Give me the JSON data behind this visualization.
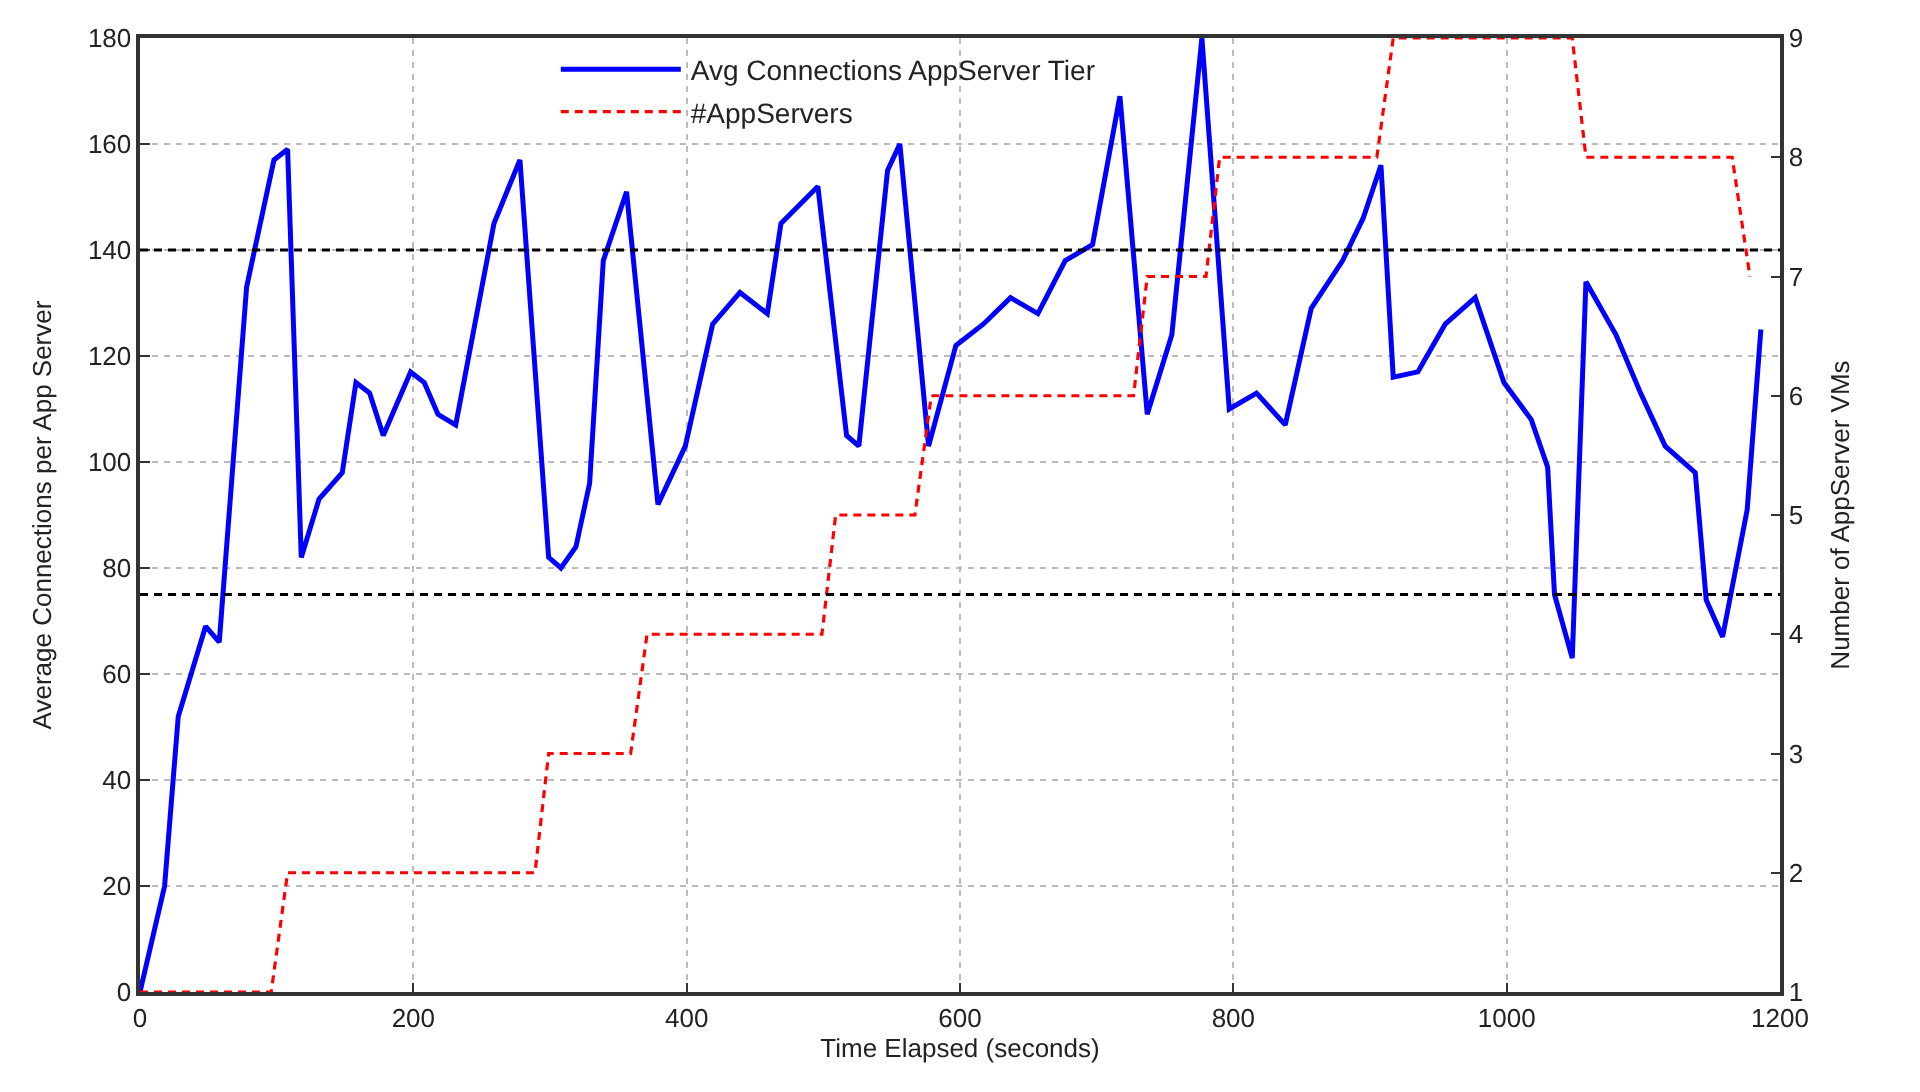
{
  "chart_data": {
    "type": "line",
    "xlabel": "Time Elapsed (seconds)",
    "ylabel": "Average Connections per App Server",
    "y2label": "Number of AppServer VMs",
    "xlim": [
      0,
      1200
    ],
    "xticks": [
      0,
      200,
      400,
      600,
      800,
      1000,
      1200
    ],
    "ylim": [
      0,
      180
    ],
    "yticks": [
      0,
      20,
      40,
      60,
      80,
      100,
      120,
      140,
      160,
      180
    ],
    "y2lim": [
      1,
      9
    ],
    "y2ticks": [
      1,
      2,
      3,
      4,
      5,
      6,
      7,
      8,
      9
    ],
    "grid": true,
    "legend": "top",
    "marker": "none",
    "ref_lines": [
      {
        "axis": "y",
        "value": 140,
        "color": "#000000",
        "line_style": "dashed"
      },
      {
        "axis": "y",
        "value": 75,
        "color": "#000000",
        "line_style": "dashed"
      }
    ],
    "series": [
      {
        "name": "Avg Connections AppServer Tier",
        "color": "#0000ff",
        "line_style": "solid",
        "x": [
          0,
          18,
          28,
          48,
          58,
          78,
          98,
          108,
          118,
          131,
          148,
          158,
          168,
          178,
          198,
          208,
          218,
          231,
          259,
          278,
          299,
          308,
          319,
          329,
          339,
          356,
          379,
          399,
          419,
          439,
          459,
          469,
          496,
          517,
          526,
          547,
          556,
          577,
          597,
          617,
          637,
          657,
          677,
          697,
          717,
          737,
          755,
          777,
          797,
          817,
          838,
          857,
          880,
          895,
          908,
          917,
          935,
          955,
          977,
          998,
          1018,
          1030,
          1035,
          1048,
          1058,
          1080,
          1098,
          1116,
          1138,
          1146,
          1158,
          1176,
          1186
        ],
        "values": [
          0,
          20,
          52,
          69,
          66,
          133,
          157,
          159,
          82,
          93,
          98,
          115,
          113,
          105,
          117,
          115,
          109,
          107,
          145,
          157,
          82,
          80,
          84,
          96,
          138,
          151,
          92,
          103,
          126,
          132,
          128,
          145,
          152,
          105,
          103,
          155,
          160,
          103,
          122,
          126,
          131,
          128,
          138,
          141,
          169,
          109,
          124,
          180,
          110,
          113,
          107,
          129,
          138,
          146,
          156,
          116,
          117,
          126,
          131,
          115,
          108,
          99,
          75,
          63,
          134,
          124,
          113,
          103,
          98,
          74,
          67,
          91,
          125
        ]
      },
      {
        "name": "#AppServers",
        "color": "#ff0000",
        "line_style": "dashed",
        "axis": "y2",
        "x": [
          0,
          96,
          108,
          289,
          299,
          359,
          371,
          499,
          509,
          567,
          579,
          727,
          737,
          780,
          790,
          905,
          917,
          1048,
          1058,
          1165,
          1178
        ],
        "values": [
          1,
          1,
          2,
          2,
          3,
          3,
          4,
          4,
          5,
          5,
          6,
          6,
          7,
          7,
          8,
          8,
          9,
          9,
          8,
          8,
          7
        ]
      }
    ]
  }
}
